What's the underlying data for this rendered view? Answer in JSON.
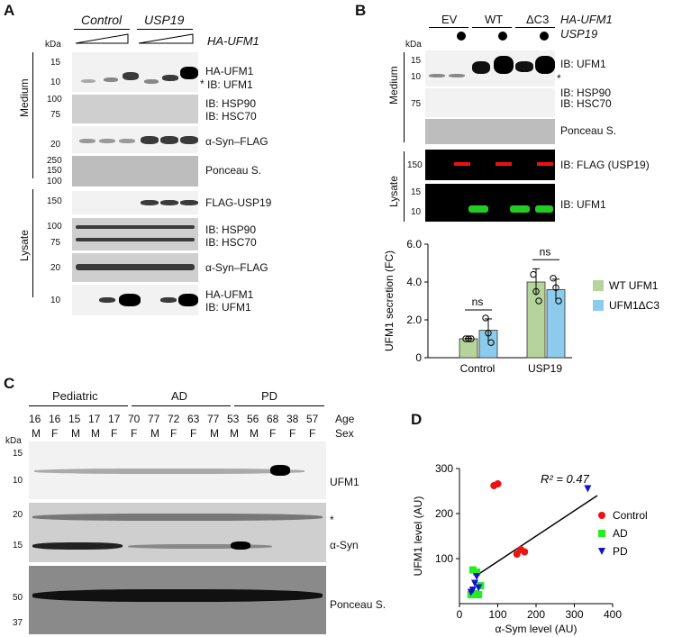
{
  "panelA": {
    "letter": "A",
    "groups": [
      "Control",
      "USP19"
    ],
    "construct": "HA-UFM1",
    "kda": "kDa",
    "section_medium": "Medium",
    "section_lysate": "Lysate",
    "medium_rows": [
      {
        "label1": "HA-UFM1",
        "label2": "IB: UFM1",
        "asterisk": "*",
        "markers": [
          "15",
          "10"
        ]
      },
      {
        "label1": "IB: HSP90",
        "label2": "IB: HSC70",
        "markers": [
          "100",
          "75"
        ]
      },
      {
        "label1": "α-Syn–FLAG",
        "markers": [
          "20"
        ]
      },
      {
        "label1": "Ponceau S.",
        "markers": [
          "250",
          "150",
          "100"
        ]
      }
    ],
    "lysate_rows": [
      {
        "label1": "FLAG-USP19",
        "markers": [
          "150"
        ]
      },
      {
        "label1": "IB: HSP90",
        "label2": "IB: HSC70",
        "markers": [
          "100",
          "75"
        ]
      },
      {
        "label1": "α-Syn–FLAG",
        "markers": [
          "20"
        ]
      },
      {
        "label1": "HA-UFM1",
        "label2": "IB: UFM1",
        "markers": [
          "10"
        ]
      }
    ]
  },
  "panelB": {
    "letter": "B",
    "lanes": [
      "EV",
      "WT",
      "ΔC3"
    ],
    "construct1": "HA-UFM1",
    "construct2": "USP19",
    "kda": "kDa",
    "section_medium": "Medium",
    "section_lysate": "Lysate",
    "medium_labels": [
      "IB: UFM1",
      "IB: HSP90",
      "IB: HSC70",
      "Ponceau S."
    ],
    "medium_markers": [
      "15",
      "10",
      "75"
    ],
    "asterisk": "*",
    "lysate_labels": [
      "IB: FLAG (USP19)",
      "IB: UFM1"
    ],
    "lysate_markers": [
      "150",
      "15",
      "10"
    ]
  },
  "chart_data": [
    {
      "type": "bar",
      "ylabel": "UFM1 secretion (FC)",
      "categories": [
        "Control",
        "USP19"
      ],
      "ylim": [
        0,
        6.0
      ],
      "yticks": [
        "0",
        "2.0",
        "4.0",
        "6.0"
      ],
      "series": [
        {
          "name": "WT UFM1",
          "color": "#b5d39a",
          "values": [
            1.0,
            4.0
          ],
          "err": [
            0.02,
            0.7
          ],
          "points": [
            [
              1.0,
              1.0,
              1.0
            ],
            [
              4.4,
              3.5,
              3.0
            ]
          ]
        },
        {
          "name": "UFM1ΔC3",
          "color": "#8dcbec",
          "values": [
            1.45,
            3.6
          ],
          "err": [
            0.6,
            0.55
          ],
          "points": [
            [
              2.1,
              1.3,
              0.8
            ],
            [
              4.2,
              3.7,
              3.0
            ]
          ]
        }
      ],
      "annotations": [
        "ns",
        "ns"
      ],
      "legend": "right"
    },
    {
      "type": "scatter",
      "title": "R² = 0.47",
      "xlabel": "α-Sym level (AU)",
      "ylabel": "UFM1 level (AU)",
      "xlim": [
        0,
        400
      ],
      "ylim": [
        0,
        300
      ],
      "xticks": [
        "0",
        "100",
        "200",
        "300",
        "400"
      ],
      "yticks": [
        "100",
        "200",
        "300"
      ],
      "series": [
        {
          "name": "Control",
          "color": "#e11",
          "marker": "circle",
          "points": [
            [
              90,
              262
            ],
            [
              100,
              266
            ],
            [
              150,
              110
            ],
            [
              160,
              120
            ],
            [
              170,
              115
            ]
          ]
        },
        {
          "name": "AD",
          "color": "#2e2",
          "marker": "square",
          "points": [
            [
              30,
              20
            ],
            [
              35,
              75
            ],
            [
              45,
              70
            ],
            [
              50,
              20
            ],
            [
              40,
              22
            ],
            [
              55,
              40
            ]
          ]
        },
        {
          "name": "PD",
          "color": "#11c",
          "marker": "triangle",
          "points": [
            [
              335,
              255
            ],
            [
              35,
              30
            ],
            [
              40,
              45
            ],
            [
              45,
              60
            ],
            [
              30,
              25
            ],
            [
              50,
              35
            ]
          ]
        }
      ],
      "fit_line": [
        [
          40,
          60
        ],
        [
          360,
          240
        ]
      ],
      "legend": "right"
    }
  ],
  "panelC": {
    "letter": "C",
    "groups": [
      "Pediatric",
      "AD",
      "PD"
    ],
    "ages": [
      "16",
      "16",
      "15",
      "17",
      "17",
      "70",
      "77",
      "72",
      "63",
      "77",
      "53",
      "56",
      "68",
      "38",
      "57"
    ],
    "sexes": [
      "M",
      "F",
      "M",
      "M",
      "F",
      "F",
      "M",
      "F",
      "F",
      "M",
      "M",
      "M",
      "F",
      "F",
      "F"
    ],
    "age_label": "Age",
    "sex_label": "Sex",
    "kda": "kDa",
    "row_labels": [
      "UFM1",
      "α-Syn",
      "Ponceau S."
    ],
    "asterisk": "*",
    "markers1": [
      "15",
      "10"
    ],
    "markers2": [
      "20",
      "15"
    ],
    "markers3": [
      "50",
      "37"
    ]
  },
  "panelD": {
    "letter": "D"
  }
}
